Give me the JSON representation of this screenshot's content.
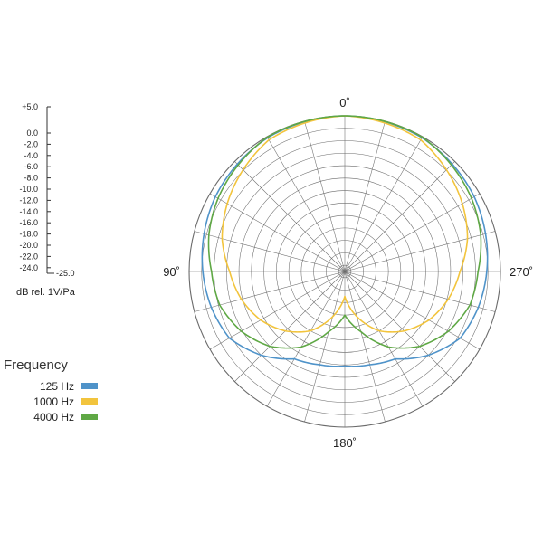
{
  "chart_data": {
    "type": "polar",
    "angle_labels": [
      "0˚",
      "90˚",
      "180˚",
      "270˚"
    ],
    "scale": {
      "ticks": [
        "+5.0",
        "0.0",
        "-2.0",
        "-4.0",
        "-6.0",
        "-8.0",
        "-10.0",
        "-12.0",
        "-14.0",
        "-16.0",
        "-18.0",
        "-20.0",
        "-22.0",
        "-24.0",
        "-25.0"
      ],
      "tick_values": [
        5,
        0,
        -2,
        -4,
        -6,
        -8,
        -10,
        -12,
        -14,
        -16,
        -18,
        -20,
        -22,
        -24,
        -25
      ],
      "range": [
        -25,
        5
      ],
      "title": "dB rel. 1V/Pa"
    },
    "legend": {
      "title": "Frequency",
      "placement": "bottom-left"
    },
    "grid": true,
    "angle_step_deg": 15,
    "series": [
      {
        "name": "125 Hz",
        "color": "#4f93c9",
        "angles_deg": [
          0,
          30,
          60,
          90,
          105,
          120,
          135,
          150,
          165,
          180,
          195,
          210,
          225,
          240,
          255,
          270,
          300,
          330
        ],
        "values": [
          0.0,
          -0.2,
          -1.0,
          -2.2,
          -2.8,
          -3.6,
          -6.0,
          -8.8,
          -9.5,
          -9.8,
          -9.5,
          -8.8,
          -6.0,
          -3.6,
          -2.8,
          -2.2,
          -1.0,
          -0.2
        ]
      },
      {
        "name": "1000 Hz",
        "color": "#f2c43d",
        "angles_deg": [
          0,
          30,
          60,
          75,
          90,
          105,
          120,
          135,
          150,
          165,
          180,
          195,
          210,
          225,
          240,
          255,
          270,
          285,
          300,
          330
        ],
        "values": [
          0.0,
          -0.6,
          -3.2,
          -4.6,
          -6.5,
          -7.8,
          -9.4,
          -11.5,
          -14.0,
          -17.5,
          -21.0,
          -17.5,
          -14.0,
          -11.5,
          -9.4,
          -7.8,
          -6.5,
          -4.6,
          -3.2,
          -0.6
        ]
      },
      {
        "name": "4000 Hz",
        "color": "#5fa845",
        "angles_deg": [
          0,
          30,
          60,
          75,
          90,
          105,
          120,
          135,
          150,
          165,
          180,
          195,
          210,
          225,
          240,
          255,
          270,
          285,
          300,
          330
        ],
        "values": [
          0.0,
          -0.1,
          -1.5,
          -2.4,
          -3.6,
          -4.2,
          -5.8,
          -8.0,
          -11.0,
          -15.0,
          -18.0,
          -15.0,
          -11.0,
          -8.0,
          -5.8,
          -4.2,
          -3.6,
          -2.4,
          -1.5,
          -0.1
        ]
      }
    ]
  }
}
